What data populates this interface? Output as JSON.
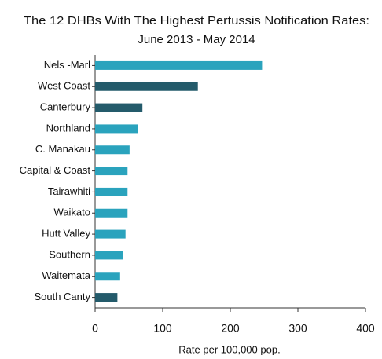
{
  "chart_data": {
    "type": "barh",
    "title": [
      "The 12 DHBs With The Highest Pertussis Notification Rates:",
      "June 2013 - May 2014"
    ],
    "xlabel": "Rate per 100,000 pop.",
    "categories": [
      "Nels -Marl",
      "West Coast",
      "Canterbury",
      "Northland",
      "C. Manakau",
      "Capital & Coast",
      "Tairawhiti",
      "Waikato",
      "Hutt Valley",
      "Southern",
      "Waitemata",
      "South Canty"
    ],
    "values": [
      247,
      152,
      70,
      63,
      51,
      48,
      48,
      48,
      45,
      41,
      37,
      33
    ],
    "colors": [
      "#2aa3bd",
      "#245b6b",
      "#245b6b",
      "#2aa3bd",
      "#2aa3bd",
      "#2aa3bd",
      "#2aa3bd",
      "#2aa3bd",
      "#2aa3bd",
      "#2aa3bd",
      "#2aa3bd",
      "#245b6b"
    ],
    "xlim": [
      0,
      400
    ],
    "xticks": [
      0,
      100,
      200,
      300,
      400
    ],
    "grid": false
  }
}
